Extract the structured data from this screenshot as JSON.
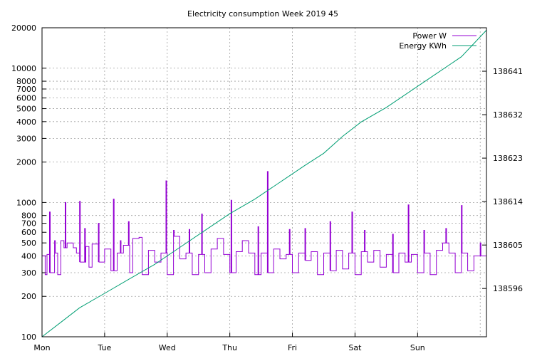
{
  "chart_data": {
    "type": "line",
    "title": "Electricity consumption Week 2019 45",
    "xlabel": "",
    "ylabel": "",
    "y2label": "",
    "x_tick_labels": [
      "Mon",
      "Tue",
      "Wed",
      "Thu",
      "Fri",
      "Sat",
      "Sun"
    ],
    "x_range_days": [
      0,
      7.1
    ],
    "y_scale": "log",
    "ylim": [
      100,
      20000
    ],
    "y_ticks": [
      100,
      200,
      300,
      400,
      500,
      600,
      700,
      800,
      1000,
      2000,
      3000,
      4000,
      5000,
      6000,
      7000,
      8000,
      10000,
      20000
    ],
    "y_tick_labels": [
      "100",
      "200",
      "300",
      "400",
      "500",
      "600",
      "700",
      "800",
      "1000",
      "2000",
      "3000",
      "4000",
      "5000",
      "6000",
      "7000",
      "8000",
      "10000",
      "20000"
    ],
    "y2lim": [
      138586,
      138650
    ],
    "y2_ticks": [
      138596,
      138605,
      138614,
      138623,
      138632,
      138641
    ],
    "y2_tick_labels": [
      "138596",
      "138605",
      "138614",
      "138623",
      "138632",
      "138641"
    ],
    "grid": true,
    "legend_position": "top-right",
    "series": [
      {
        "name": "Power W",
        "color": "#9400d3",
        "axis": "y",
        "baseline": [
          [
            0,
            400
          ],
          [
            0.05,
            290
          ],
          [
            0.08,
            410
          ],
          [
            0.12,
            300
          ],
          [
            0.2,
            420
          ],
          [
            0.25,
            290
          ],
          [
            0.3,
            520
          ],
          [
            0.35,
            460
          ],
          [
            0.4,
            500
          ],
          [
            0.5,
            460
          ],
          [
            0.55,
            420
          ],
          [
            0.6,
            360
          ],
          [
            0.7,
            470
          ],
          [
            0.75,
            330
          ],
          [
            0.8,
            490
          ],
          [
            0.9,
            360
          ],
          [
            1.0,
            450
          ],
          [
            1.1,
            310
          ],
          [
            1.2,
            420
          ],
          [
            1.3,
            480
          ],
          [
            1.4,
            300
          ],
          [
            1.45,
            540
          ],
          [
            1.55,
            550
          ],
          [
            1.6,
            290
          ],
          [
            1.7,
            440
          ],
          [
            1.8,
            360
          ],
          [
            1.9,
            420
          ],
          [
            2.0,
            290
          ],
          [
            2.1,
            560
          ],
          [
            2.2,
            380
          ],
          [
            2.3,
            420
          ],
          [
            2.4,
            290
          ],
          [
            2.5,
            410
          ],
          [
            2.6,
            300
          ],
          [
            2.7,
            450
          ],
          [
            2.8,
            540
          ],
          [
            2.9,
            410
          ],
          [
            3.0,
            300
          ],
          [
            3.1,
            430
          ],
          [
            3.2,
            520
          ],
          [
            3.3,
            420
          ],
          [
            3.4,
            290
          ],
          [
            3.5,
            420
          ],
          [
            3.6,
            300
          ],
          [
            3.7,
            450
          ],
          [
            3.8,
            380
          ],
          [
            3.9,
            410
          ],
          [
            4.0,
            300
          ],
          [
            4.1,
            420
          ],
          [
            4.2,
            370
          ],
          [
            4.3,
            430
          ],
          [
            4.4,
            290
          ],
          [
            4.5,
            420
          ],
          [
            4.6,
            310
          ],
          [
            4.7,
            440
          ],
          [
            4.8,
            320
          ],
          [
            4.9,
            420
          ],
          [
            5.0,
            290
          ],
          [
            5.1,
            430
          ],
          [
            5.2,
            360
          ],
          [
            5.3,
            440
          ],
          [
            5.4,
            330
          ],
          [
            5.5,
            410
          ],
          [
            5.6,
            300
          ],
          [
            5.7,
            420
          ],
          [
            5.8,
            360
          ],
          [
            5.9,
            410
          ],
          [
            6.0,
            300
          ],
          [
            6.1,
            420
          ],
          [
            6.2,
            290
          ],
          [
            6.3,
            440
          ],
          [
            6.4,
            500
          ],
          [
            6.5,
            420
          ],
          [
            6.6,
            300
          ],
          [
            6.7,
            420
          ],
          [
            6.8,
            310
          ],
          [
            6.9,
            400
          ],
          [
            7.0,
            400
          ],
          [
            7.1,
            380
          ]
        ],
        "spikes": [
          [
            0.12,
            850
          ],
          [
            0.2,
            520
          ],
          [
            0.37,
            1000
          ],
          [
            0.6,
            1020
          ],
          [
            0.68,
            640
          ],
          [
            0.9,
            700
          ],
          [
            1.14,
            1060
          ],
          [
            1.25,
            520
          ],
          [
            1.38,
            720
          ],
          [
            1.98,
            1450
          ],
          [
            2.1,
            620
          ],
          [
            2.35,
            630
          ],
          [
            2.55,
            820
          ],
          [
            3.02,
            1040
          ],
          [
            3.45,
            660
          ],
          [
            3.6,
            1700
          ],
          [
            3.95,
            630
          ],
          [
            4.2,
            640
          ],
          [
            4.6,
            720
          ],
          [
            4.95,
            850
          ],
          [
            5.15,
            620
          ],
          [
            5.6,
            580
          ],
          [
            5.85,
            960
          ],
          [
            6.1,
            620
          ],
          [
            6.45,
            640
          ],
          [
            6.7,
            950
          ],
          [
            7.0,
            500
          ]
        ]
      },
      {
        "name": "Energy KWh",
        "color": "#009e73",
        "axis": "y2",
        "points": [
          [
            0.0,
            138586
          ],
          [
            0.3,
            138589
          ],
          [
            0.6,
            138592
          ],
          [
            1.0,
            138595
          ],
          [
            1.4,
            138598
          ],
          [
            1.8,
            138601
          ],
          [
            2.2,
            138604.5
          ],
          [
            2.6,
            138608
          ],
          [
            3.0,
            138611.5
          ],
          [
            3.4,
            138614.5
          ],
          [
            3.8,
            138618
          ],
          [
            4.2,
            138621.5
          ],
          [
            4.5,
            138624
          ],
          [
            4.8,
            138627.5
          ],
          [
            5.1,
            138630.5
          ],
          [
            5.5,
            138633.5
          ],
          [
            5.9,
            138637
          ],
          [
            6.3,
            138640.5
          ],
          [
            6.7,
            138644
          ],
          [
            7.1,
            138649.5
          ]
        ]
      }
    ]
  }
}
